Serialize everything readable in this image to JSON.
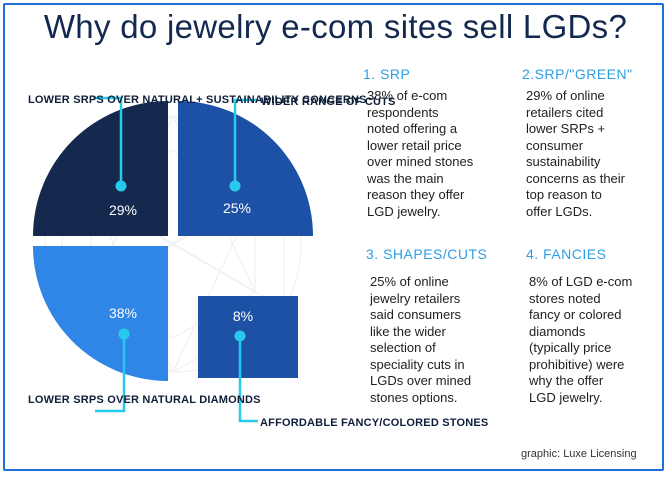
{
  "title": "Why do jewelry e-com sites sell LGDs?",
  "credit": "graphic: Luxe Licensing",
  "colors": {
    "border": "#1f6fd6",
    "title": "#14294f",
    "heading": "#2e9ee6",
    "navy": "#15294f",
    "royal": "#1d51a6",
    "bright": "#2f86e6",
    "callout": "#27c9ec"
  },
  "chart_data": {
    "type": "pie",
    "slices": [
      {
        "label": "LOWER SRPS\nOVER NATURAL+\nSUSTAINABILITY\nCONCERNS",
        "value": 29,
        "value_label": "29%",
        "color": "#15294f"
      },
      {
        "label": "WIDER RANGE\nOF CUTS",
        "value": 25,
        "value_label": "25%",
        "color": "#1d51a6"
      },
      {
        "label": "AFFORDABLE\nFANCY/COLORED\nSTONES",
        "value": 8,
        "value_label": "8%",
        "color": "#1d51a6"
      },
      {
        "label": "LOWER SRPS\nOVER NATURAL\nDIAMONDS",
        "value": 38,
        "value_label": "38%",
        "color": "#2f86e6"
      }
    ]
  },
  "sections": [
    {
      "heading": "1. SRP",
      "body": "38% of e-com\nrespondents\n noted offering a\nlower retail price\nover mined stones\nwas the main\nreason they offer\nLGD jewelry."
    },
    {
      "heading": "2.SRP/\"GREEN\"",
      "body": "29% of online\nretailers cited\n lower SRPs +\nconsumer\nsustainability\nconcerns as their\ntop reason to\noffer LGDs."
    },
    {
      "heading": "3. SHAPES/CUTS",
      "body": "25% of online\njewelry retailers\n said consumers\nlike the wider\nselection of\nspeciality cuts in\nLGDs over mined\nstones options."
    },
    {
      "heading": "4. FANCIES",
      "body": "8% of LGD e-com\nstores noted\nfancy or colored\ndiamonds\n(typically price\nprohibitive) were\nwhy the offer\nLGD jewelry."
    }
  ]
}
